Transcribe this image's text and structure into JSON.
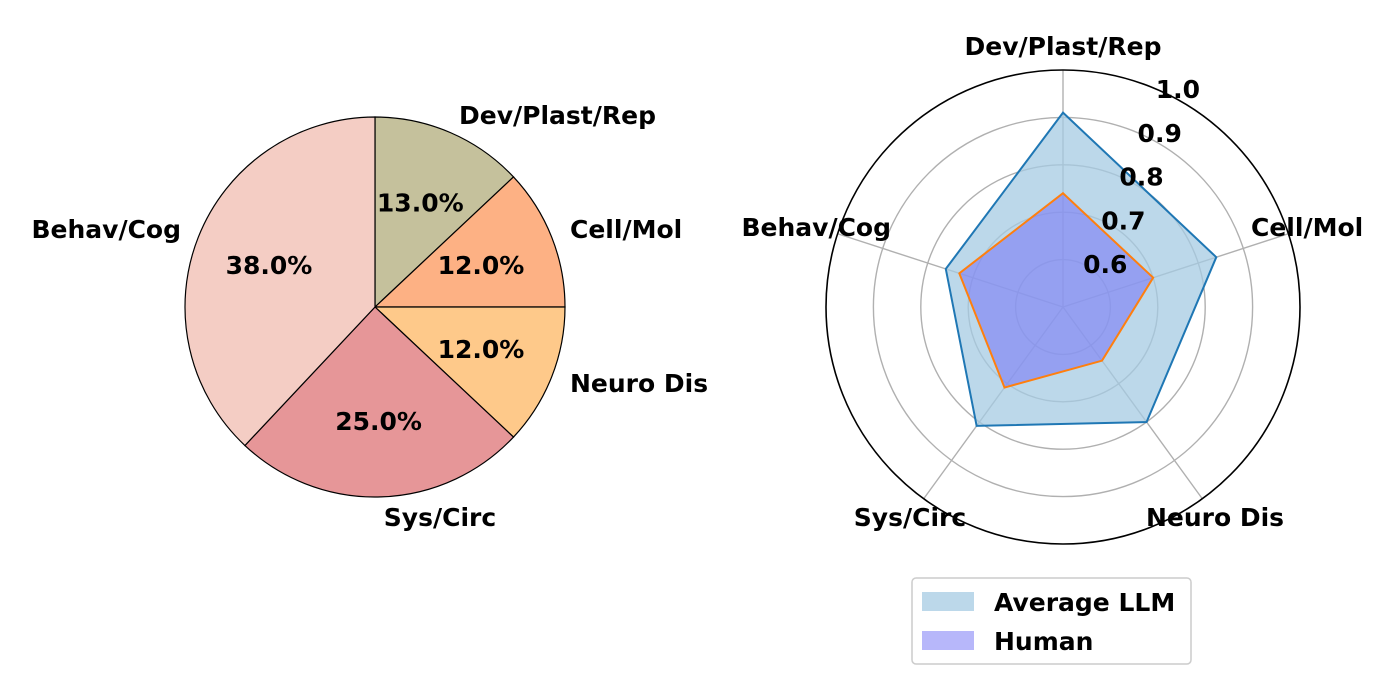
{
  "chart_data": [
    {
      "type": "pie",
      "title": "",
      "start_angle_deg": 90,
      "direction": "clockwise",
      "slices": [
        {
          "label": "Dev/Plast/Rep",
          "value": 13.0,
          "pct_label": "13.0%",
          "color": "#c5c19c"
        },
        {
          "label": "Cell/Mol",
          "value": 12.0,
          "pct_label": "12.0%",
          "color": "#fdb184"
        },
        {
          "label": "Neuro Dis",
          "value": 12.0,
          "pct_label": "12.0%",
          "color": "#fec98a"
        },
        {
          "label": "Sys/Circ",
          "value": 25.0,
          "pct_label": "25.0%",
          "color": "#e69698"
        },
        {
          "label": "Behav/Cog",
          "value": 38.0,
          "pct_label": "38.0%",
          "color": "#f4cdc4"
        }
      ],
      "edge_color": "#000000"
    },
    {
      "type": "radar",
      "title": "",
      "categories": [
        "Dev/Plast/Rep",
        "Cell/Mol",
        "Neuro Dis",
        "Sys/Circ",
        "Behav/Cog"
      ],
      "rlim": [
        0.5,
        1.0
      ],
      "rticks": [
        0.6,
        0.7,
        0.8,
        0.9,
        1.0
      ],
      "rtick_labels": [
        "0.6",
        "0.7",
        "0.8",
        "0.9",
        "1.0"
      ],
      "grid": true,
      "series": [
        {
          "name": "Average LLM",
          "values": [
            0.91,
            0.84,
            0.8,
            0.81,
            0.76
          ],
          "fill_color": "#a6cbe3",
          "fill_opacity": 0.75,
          "line_color": "#1f77b4"
        },
        {
          "name": "Human",
          "values": [
            0.74,
            0.7,
            0.64,
            0.71,
            0.73
          ],
          "fill_color": "#7b7bf5",
          "fill_opacity": 0.6,
          "line_color": "#ff7f0e"
        }
      ],
      "legend": {
        "position": "bottom",
        "entries": [
          "Average LLM",
          "Human"
        ]
      }
    }
  ]
}
